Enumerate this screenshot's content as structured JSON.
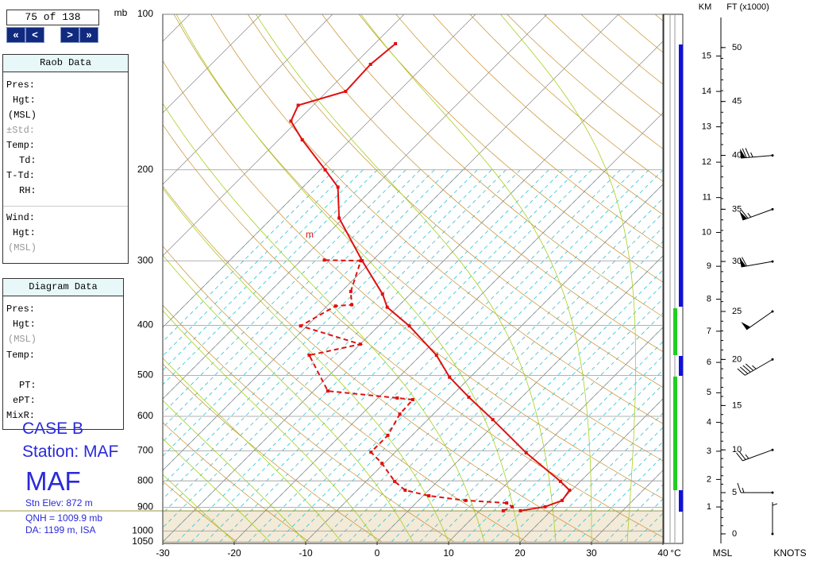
{
  "navigation": {
    "counter": "75 of 138",
    "first": "«",
    "prev": "<",
    "next": ">",
    "last": "»"
  },
  "raob_panel": {
    "title": "Raob Data",
    "rows": [
      "Pres:",
      "Hgt:",
      "(MSL)",
      "±Std:",
      "Temp:",
      "Td:",
      "T-Td:",
      "RH:",
      "Wind:",
      "Hgt:",
      "(MSL)"
    ]
  },
  "diagram_panel": {
    "title": "Diagram Data",
    "rows": [
      "Pres:",
      "Hgt:",
      "(MSL)",
      "Temp:",
      "PT:",
      "ePT:",
      "MixR:"
    ]
  },
  "station": {
    "case": "CASE B",
    "station": "Station: MAF",
    "id": "MAF",
    "elevation": "Stn Elev: 872 m",
    "qnh": "QNH = 1009.9 mb",
    "da": "DA: 1199 m, ISA"
  },
  "chart_data": {
    "type": "skewt",
    "ylabel": "mb",
    "xlabel": "°C",
    "marker_label": "m",
    "ylim": [
      100,
      1050
    ],
    "yticks": [
      100,
      200,
      300,
      400,
      500,
      600,
      700,
      800,
      900,
      1000,
      1050
    ],
    "xlim": [
      -30,
      40
    ],
    "xticks": [
      -30,
      -20,
      -10,
      0,
      10,
      20,
      30,
      40
    ],
    "log_y": true,
    "grid": true,
    "series": [
      {
        "color": "#e01010",
        "style": "solid",
        "pressure": [
          914,
          898,
          873,
          834,
          802,
          706,
          609,
          551,
          504,
          457,
          401,
          369,
          348,
          300,
          248,
          216,
          200,
          175,
          161,
          150,
          141,
          125,
          114
        ],
        "values": [
          15.7,
          18.6,
          20.1,
          19.7,
          17.2,
          8.4,
          -0.9,
          -7.4,
          -12.9,
          -17.8,
          -25.7,
          -31.4,
          -33.9,
          -41.4,
          -50.6,
          -55.1,
          -59.3,
          -66.7,
          -70.9,
          -72.1,
          -67.4,
          -67.7,
          -67.1
        ]
      },
      {
        "color": "#e01010",
        "style": "dashed",
        "pressure": [
          914,
          898,
          883,
          873,
          855,
          834,
          802,
          740,
          704,
          653,
          594,
          557,
          553,
          536,
          457,
          435,
          401,
          367,
          365,
          344,
          300,
          299
        ],
        "values": [
          13.3,
          14.0,
          12.7,
          6.6,
          0.8,
          -3.3,
          -6.0,
          -10.3,
          -13.4,
          -13.4,
          -14.7,
          -14.9,
          -17.3,
          -28.0,
          -35.6,
          -30.0,
          -40.9,
          -38.8,
          -36.7,
          -38.7,
          -41.6,
          -46.8
        ]
      }
    ],
    "height_axis": {
      "km_label": "KM",
      "ft_label": "FT (x1000)",
      "bottom_label": "MSL",
      "km_ticks": [
        1,
        2,
        3,
        4,
        5,
        6,
        7,
        8,
        9,
        10,
        11,
        12,
        13,
        14,
        15
      ],
      "ft_ticks": [
        0,
        5,
        10,
        15,
        20,
        25,
        30,
        35,
        40,
        45,
        50
      ]
    },
    "winds": {
      "label": "KNOTS",
      "color": "#000000",
      "height_kft": [
        0,
        5,
        10,
        20,
        25,
        30,
        35,
        40
      ],
      "speed": [
        5,
        15,
        25,
        45,
        50,
        60,
        65,
        75
      ],
      "direction": [
        360,
        270,
        250,
        240,
        235,
        260,
        250,
        265
      ]
    }
  }
}
